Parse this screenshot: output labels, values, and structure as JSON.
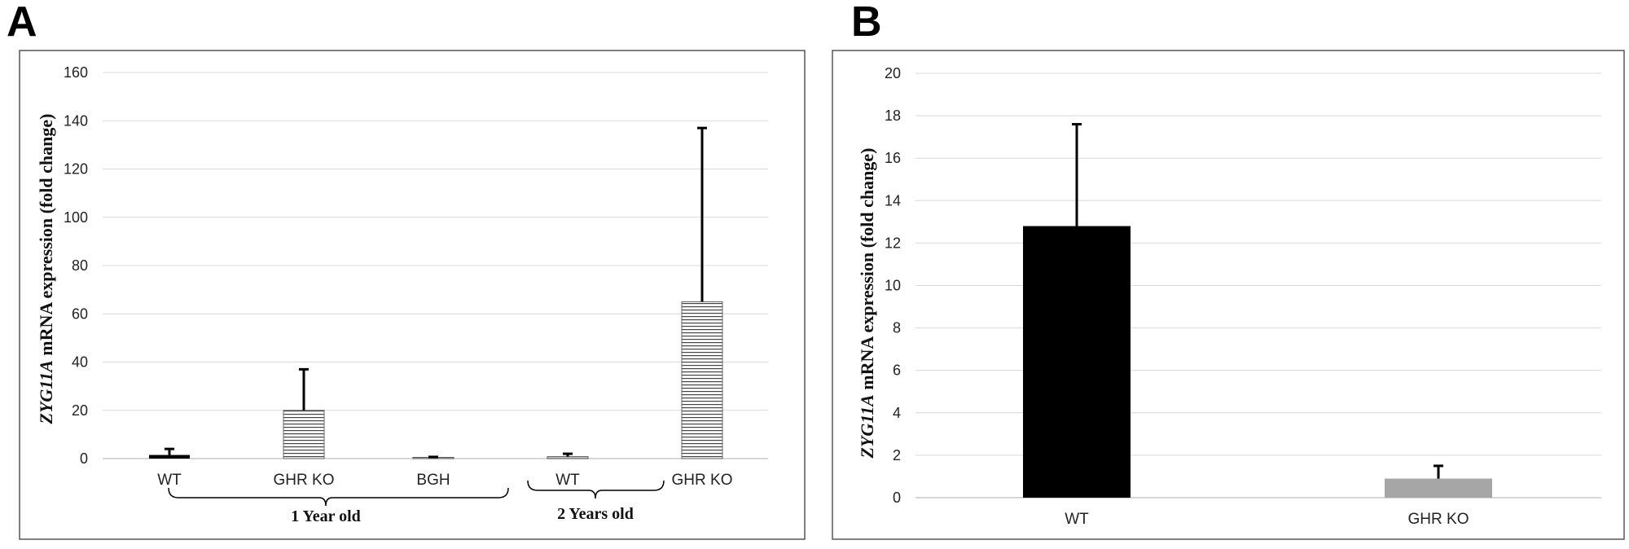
{
  "panels": {
    "a_letter": "A",
    "b_letter": "B"
  },
  "chart_data": [
    {
      "type": "bar",
      "panel": "A",
      "ylabel_italic": "ZYG11A",
      "ylabel_rest": " mRNA expression (fold change)",
      "xlabel": "",
      "ylim": [
        0,
        160
      ],
      "yticks": [
        0,
        20,
        40,
        60,
        80,
        100,
        120,
        140,
        160
      ],
      "grid": true,
      "categories": [
        "WT",
        "GHR KO",
        "BGH",
        "WT",
        "GHR KO"
      ],
      "values": [
        1.5,
        20,
        0.5,
        0.8,
        65
      ],
      "errors": [
        2.5,
        17,
        0.2,
        1.2,
        72
      ],
      "bar_styles": [
        "black",
        "hatched",
        "thin",
        "thin",
        "hatched"
      ],
      "groups": [
        {
          "label": "1 Year old",
          "categories": [
            0,
            1,
            2
          ]
        },
        {
          "label": "2 Years old",
          "categories": [
            3,
            4
          ]
        }
      ]
    },
    {
      "type": "bar",
      "panel": "B",
      "ylabel_italic": "ZYG11A",
      "ylabel_rest": " mRNA expression (fold change)",
      "xlabel": "",
      "ylim": [
        0,
        20
      ],
      "yticks": [
        0,
        2,
        4,
        6,
        8,
        10,
        12,
        14,
        16,
        18,
        20
      ],
      "grid": true,
      "categories": [
        "WT",
        "GHR KO"
      ],
      "values": [
        12.8,
        0.9
      ],
      "errors": [
        4.8,
        0.6
      ],
      "colors": [
        "#000000",
        "#a6a6a6"
      ]
    }
  ]
}
